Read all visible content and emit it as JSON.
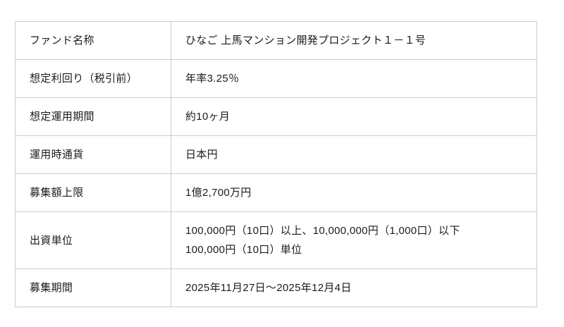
{
  "colors": {
    "background": "#ffffff",
    "border": "#cccccc",
    "text": "#1b1b1b"
  },
  "table": {
    "rows": [
      {
        "label": "ファンド名称",
        "value": "ひなご 上馬マンション開発プロジェクト１－１号"
      },
      {
        "label": "想定利回り（税引前）",
        "value": "年率3.25％"
      },
      {
        "label": "想定運用期間",
        "value": "約10ヶ月"
      },
      {
        "label": "運用時通貨",
        "value": "日本円"
      },
      {
        "label": "募集額上限",
        "value": "1億2,700万円"
      },
      {
        "label": "出資単位",
        "value": "100,000円（10口）以上、10,000,000円（1,000口）以下\n100,000円（10口）単位"
      },
      {
        "label": "募集期間",
        "value": "2025年11月27日～2025年12月4日"
      }
    ]
  }
}
